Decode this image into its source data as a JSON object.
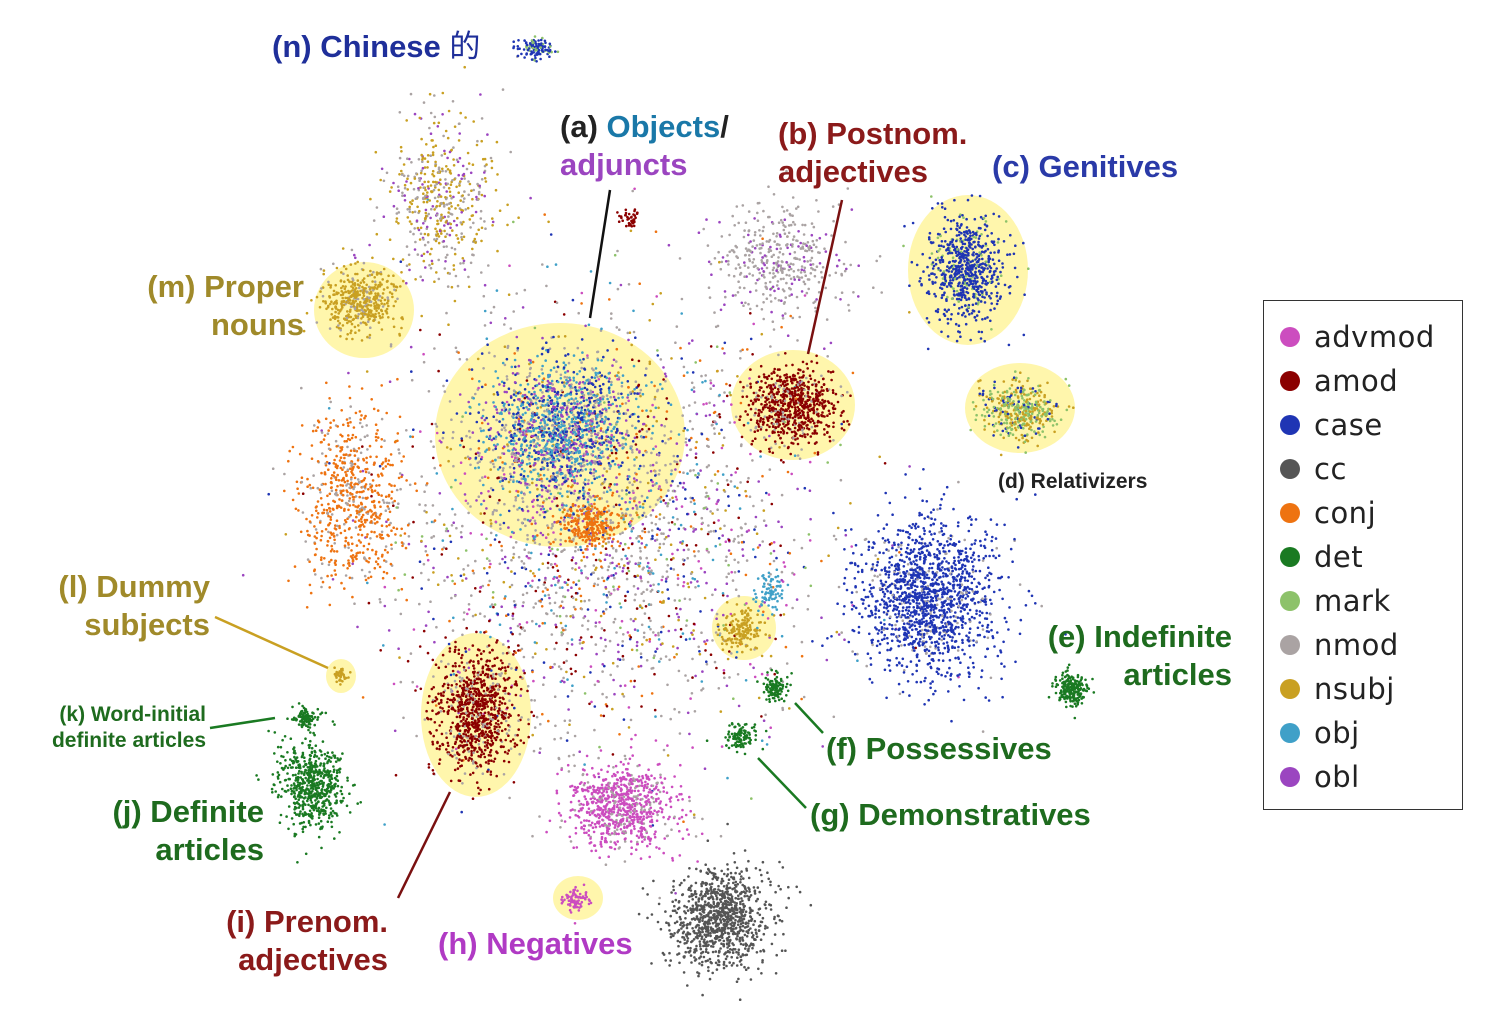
{
  "chart_data": {
    "type": "scatter",
    "title": "",
    "xlabel": "",
    "ylabel": "",
    "grid": false,
    "legend_position": "right",
    "series": [
      {
        "name": "advmod",
        "color": "#cc4dbf"
      },
      {
        "name": "amod",
        "color": "#8b0000"
      },
      {
        "name": "case",
        "color": "#1f35b4"
      },
      {
        "name": "cc",
        "color": "#555555"
      },
      {
        "name": "conj",
        "color": "#ee7311"
      },
      {
        "name": "det",
        "color": "#1a7a22"
      },
      {
        "name": "mark",
        "color": "#8dc26a"
      },
      {
        "name": "nmod",
        "color": "#aaa3a3"
      },
      {
        "name": "nsubj",
        "color": "#c9a022"
      },
      {
        "name": "obj",
        "color": "#3fa0c8"
      },
      {
        "name": "obl",
        "color": "#9b45c0"
      }
    ],
    "annotations": {
      "n": {
        "prefix": "(n) Chinese ",
        "char": "的"
      },
      "a": {
        "prefix": "(a) ",
        "word1": "Objects",
        "slash": "/",
        "word2": "adjuncts"
      },
      "b": {
        "line1": "(b) Postnom.",
        "line2": "adjectives"
      },
      "c": {
        "text": "(c) Genitives"
      },
      "d": {
        "text": "(d) Relativizers"
      },
      "e": {
        "line1": "(e) Indefinite",
        "line2": "articles"
      },
      "f": {
        "text": "(f) Possessives"
      },
      "g": {
        "text": "(g) Demonstratives"
      },
      "h": {
        "text": "(h) Negatives"
      },
      "i": {
        "line1": "(i) Prenom.",
        "line2": "adjectives"
      },
      "j": {
        "line1": "(j) Definite",
        "line2": "articles"
      },
      "k": {
        "line1": "(k) Word-initial",
        "line2": "definite articles"
      },
      "l": {
        "line1": "(l) Dummy",
        "line2": "subjects"
      },
      "m": {
        "line1": "(m) Proper",
        "line2": "nouns"
      }
    }
  },
  "colors": {
    "label_dark_red": "#8b1a1a",
    "label_blue": "#2a3aa8",
    "label_green": "#1e6b1e",
    "label_olive": "#a08a2a",
    "label_magenta": "#b03ac4",
    "label_teal": "#1a78a8",
    "label_purple": "#9b45c0",
    "label_black": "#222222",
    "label_navy": "#1f2f9a",
    "highlight": "#fff59d"
  }
}
